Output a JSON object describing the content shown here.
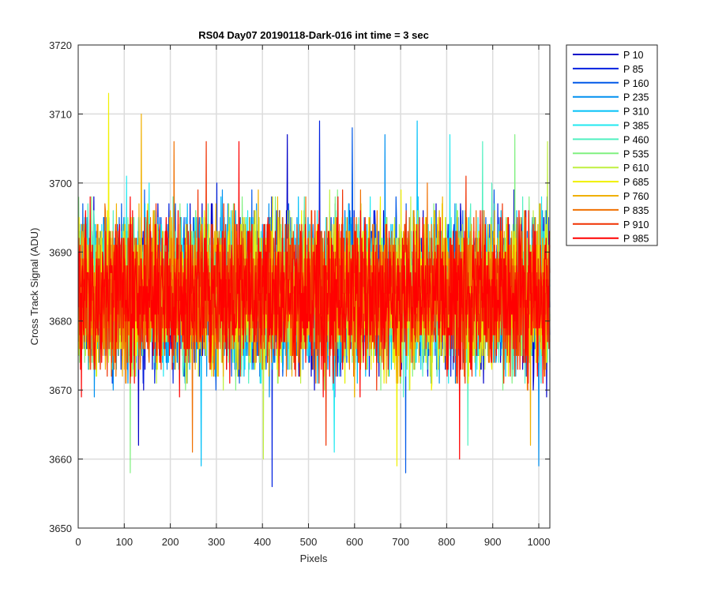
{
  "chart_data": {
    "type": "line",
    "title": "RS04 Day07 20190118-Dark-016 int time = 3 sec",
    "xlabel": "Pixels",
    "ylabel": "Cross Track Signal (ADU)",
    "xlim": [
      0,
      1024
    ],
    "ylim": [
      3650,
      3720
    ],
    "x_ticks": [
      0,
      100,
      200,
      300,
      400,
      500,
      600,
      700,
      800,
      900,
      1000
    ],
    "y_ticks": [
      3650,
      3660,
      3670,
      3680,
      3690,
      3700,
      3710,
      3720
    ],
    "grid": true,
    "legend_position": "outside-top-right",
    "x_range": [
      1,
      1024
    ],
    "series": [
      {
        "name": "P 10",
        "color": "#0000c8",
        "mean": 3684,
        "min": 3662,
        "max": 3707
      },
      {
        "name": "P 85",
        "color": "#0020e0",
        "mean": 3684,
        "min": 3656,
        "max": 3709
      },
      {
        "name": "P 160",
        "color": "#0058e8",
        "mean": 3684,
        "min": 3658,
        "max": 3708
      },
      {
        "name": "P 235",
        "color": "#0090f0",
        "mean": 3684,
        "min": 3659,
        "max": 3707
      },
      {
        "name": "P 310",
        "color": "#00c0f8",
        "mean": 3684,
        "min": 3659,
        "max": 3709
      },
      {
        "name": "P 385",
        "color": "#20e8f0",
        "mean": 3684,
        "min": 3661,
        "max": 3707
      },
      {
        "name": "P 460",
        "color": "#50f0c0",
        "mean": 3684,
        "min": 3662,
        "max": 3706
      },
      {
        "name": "P 535",
        "color": "#80f080",
        "mean": 3684,
        "min": 3658,
        "max": 3707
      },
      {
        "name": "P 610",
        "color": "#c0f040",
        "mean": 3684,
        "min": 3660,
        "max": 3706
      },
      {
        "name": "P 685",
        "color": "#f0f000",
        "mean": 3684,
        "min": 3659,
        "max": 3713
      },
      {
        "name": "P 760",
        "color": "#f0b000",
        "mean": 3684,
        "min": 3662,
        "max": 3710
      },
      {
        "name": "P 835",
        "color": "#f07000",
        "mean": 3684,
        "min": 3661,
        "max": 3706
      },
      {
        "name": "P 910",
        "color": "#f03000",
        "mean": 3684,
        "min": 3662,
        "max": 3706
      },
      {
        "name": "P 985",
        "color": "#ff0000",
        "mean": 3684,
        "min": 3660,
        "max": 3706
      }
    ]
  }
}
